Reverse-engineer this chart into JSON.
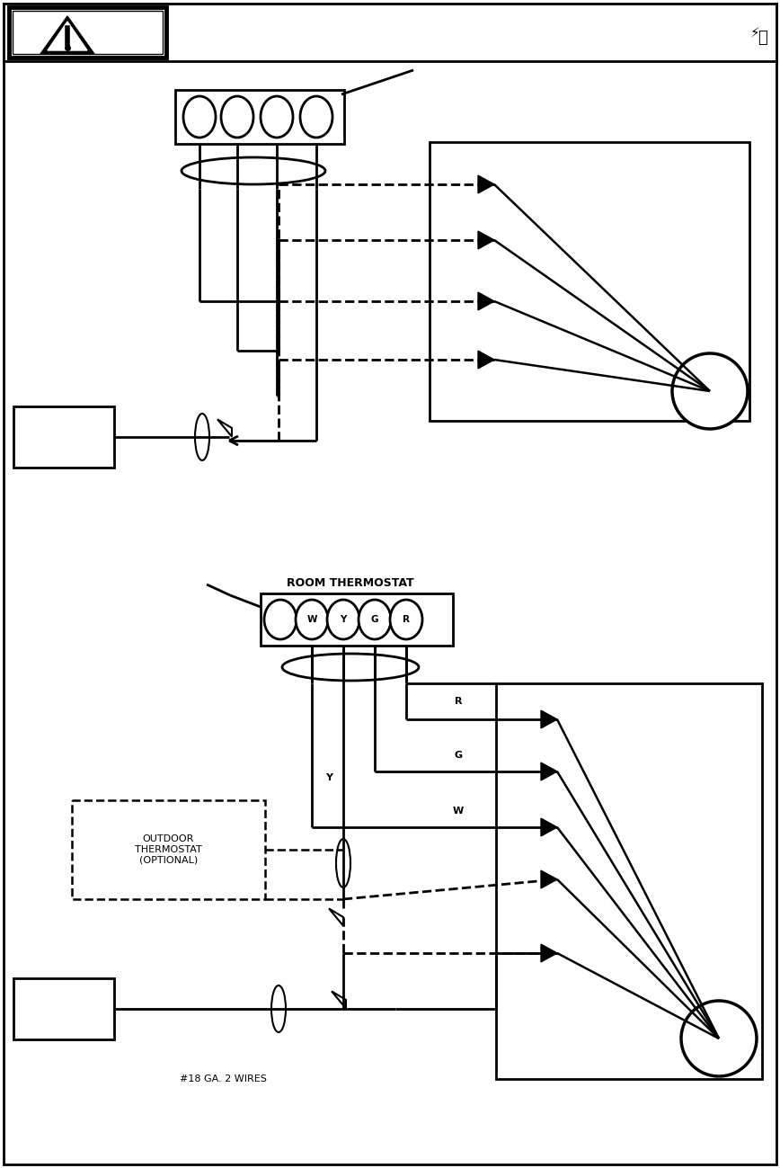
{
  "bg_color": "#ffffff",
  "line_color": "#000000",
  "page_width": 8.68,
  "page_height": 12.99,
  "labels": {
    "room_thermostat": "ROOM THERMOSTAT",
    "y_label": "Y",
    "r_label": "R",
    "g_label": "G",
    "w_label": "W",
    "outdoor_label": "OUTDOOR\nTHERMOSTAT\n(OPTIONAL)",
    "wire_label": "#18 GA. 2 WIRES"
  }
}
